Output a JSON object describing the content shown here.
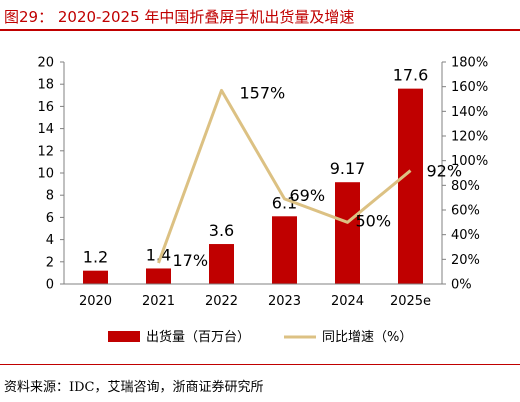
{
  "figure_title": "图29： 2020-2025 年中国折叠屏手机出货量及增速",
  "source_note": "资料来源：IDC，艾瑞咨询，浙商证券研究所",
  "colors": {
    "bar": "#c00000",
    "line": "#dcc183",
    "accent": "#c00000"
  },
  "chart_data": {
    "type": "bar",
    "title": "",
    "categories": [
      "2020",
      "2021",
      "2022",
      "2023",
      "2024",
      "2025e"
    ],
    "series": [
      {
        "name": "出货量（百万台）",
        "kind": "bar",
        "axis": "left",
        "values": [
          1.2,
          1.4,
          3.6,
          6.1,
          9.17,
          17.6
        ],
        "labels": [
          "1.2",
          "1.4",
          "3.6",
          "6.1",
          "9.17",
          "17.6"
        ]
      },
      {
        "name": "同比增速（%）",
        "kind": "line",
        "axis": "right",
        "values": [
          null,
          17,
          157,
          69,
          50,
          92
        ],
        "labels": [
          "",
          "17%",
          "157%",
          "69%",
          "50%",
          "92%"
        ]
      }
    ],
    "y_left": {
      "min": 0,
      "max": 20,
      "step": 2,
      "ticks": [
        "0",
        "2",
        "4",
        "6",
        "8",
        "10",
        "12",
        "14",
        "16",
        "18",
        "20"
      ]
    },
    "y_right": {
      "min": 0,
      "max": 180,
      "step": 20,
      "ticks": [
        "0%",
        "20%",
        "40%",
        "60%",
        "80%",
        "100%",
        "120%",
        "140%",
        "160%",
        "180%"
      ]
    },
    "legend_position": "bottom",
    "grid": false
  }
}
